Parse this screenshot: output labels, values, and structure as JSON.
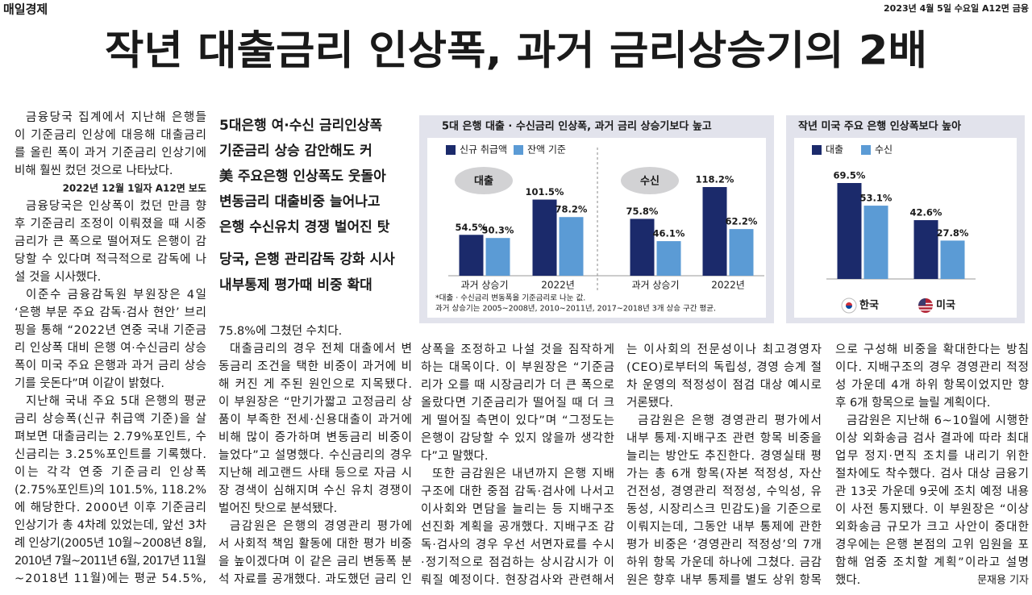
{
  "header": {
    "publication": "매일경제",
    "dateline": "2023년 4월 5일 수요일 A12면 금융"
  },
  "headline": "작년 대출금리 인상폭, 과거 금리상승기의 2배",
  "subheads": [
    [
      "5대은행 여·수신 금리인상폭",
      "기준금리 상승 감안해도 커",
      "美 주요은행 인상폭도 웃돌아",
      "변동금리 대출비중 늘어나고",
      "은행 수신유치 경쟁 벌어진 탓"
    ],
    [
      "당국, 은행 관리감독 강화 시사",
      "내부통제 평가때 비중 확대"
    ]
  ],
  "article": {
    "reference": "2022년 12월 1일자 A12면 보도",
    "byline": "문재용 기자",
    "columns": [
      [
        [
          "금융당국 집계에서 지난해 은행들",
          "이 기준금리 인상에 대응해 대출금리",
          "를 올린 폭이 과거 기준금리 인상기에",
          "비해 훨씬 컸던 것으로 나타났다."
        ],
        [
          "금융당국은 인상폭이 컸던 만큼 향",
          "후 기준금리 조정이 이뤄졌을 때 시중",
          "금리가 큰 폭으로 떨어져도 은행이 감",
          "당할 수 있다며 적극적으로 감독에 나",
          "설 것을 시사했다."
        ],
        [
          "이준수 금융감독원 부원장은 4일",
          "‘은행 부문 주요 감독·검사 현안’ 브리",
          "핑을 통해 “2022년 연중 국내 기준금",
          "리 인상폭 대비 은행 여·수신금리 상승",
          "폭이 미국 주요 은행과 과거 금리 상승",
          "기를 웃돈다”며 이같이 밝혔다."
        ],
        [
          "지난해 국내 주요 5대 은행의 평균",
          "금리 상승폭(신규 취급액 기준)을 살",
          "펴보면 대출금리는 2.79%포인트, 수",
          "신금리는 3.25%포인트를 기록했다.",
          "이는 각각 연중 기준금리 인상폭",
          "(2.75%포인트)의 101.5%, 118.2%",
          "에 해당한다. 2000년 이후 기준금리",
          "인상기가 총 4차례 있었는데, 앞선 3차",
          "례 인상기(2005년 10월~2008년 8월,",
          "2010년 7월~2011년 6월, 2017년 11월",
          "~2018년 11월)에는 평균 54.5%,"
        ]
      ],
      [
        [
          "75.8%에 그쳤던 수치다."
        ],
        [
          "대출금리의 경우 전체 대출에서 변",
          "동금리 조건을 택한 비중이 과거에 비",
          "해 커진 게 주된 원인으로 지목됐다.",
          "이 부원장은 “만기가짧고 고정금리 상",
          "품이 부족한 전세·신용대출이 과거에",
          "비해 많이 증가하며 변동금리 비중이",
          "늘었다”고 설명했다. 수신금리의 경우",
          "지난해 레고랜드 사태 등으로 자금 시",
          "장 경색이 심해지며 수신 유치 경쟁이",
          "벌어진 탓으로 분석됐다."
        ],
        [
          "금감원은 은행의 경영관리 평가에",
          "서 사회적 책임 활동에 대한 평가 비중",
          "을 높이겠다며 이 같은 금리 변동폭 분",
          "석 자료를 공개했다. 과도했던 금리 인"
        ]
      ],
      [
        [
          "상폭을 조정하고 나설 것을 짐작하게",
          "하는 대목이다. 이 부원장은 “기준금",
          "리가 오를 때 시장금리가 더 큰 폭으로",
          "올랐다면 기준금리가 떨어질 때 더 크",
          "게 떨어질 측면이 있다”며 “그정도는",
          "은행이 감당할 수 있지 않을까 생각한",
          "다”고 말했다."
        ],
        [
          "또한 금감원은 내년까지 은행 지배",
          "구조에 대한 중점 감독·검사에 나서고",
          "이사회와 면담을 늘리는 등 지배구조",
          "선진화 계획을 공개했다. 지배구조 감",
          "독·검사의 경우 우선 서면자료를 수시",
          "·정기적으로 점검하는 상시감시가 이",
          "뤄질 예정이다. 현장검사와 관련해서"
        ]
      ],
      [
        [
          "는 이사회의 전문성이나 최고경영자",
          "(CEO)로부터의 독립성, 경영 승계 절",
          "차 운영의 적정성이 점검 대상 예시로",
          "거론됐다."
        ],
        [
          "금감원은 은행 경영관리 평가에서",
          "내부 통제·지배구조 관련 항목 비중을",
          "늘리는 방안도 추진한다. 경영실태 평",
          "가는 총 6개 항목(자본 적정성, 자산",
          "건전성, 경영관리 적정성, 수익성, 유",
          "동성, 시장리스크 민감도)을 기준으로",
          "이뤄지는데, 그동안 내부 통제에 관한",
          "평가 비중은 ‘경영관리 적정성’의 7개",
          "하위 항목 가운데 하나에 그쳤다. 금감",
          "원은 향후 내부 통제를 별도 상위 항목"
        ]
      ],
      [
        [
          "으로 구성해 비중을 확대한다는 방침",
          "이다. 지배구조의 경우 경영관리 적정",
          "성 가운데 4개 하위 항목이었지만 향",
          "후 6개 항목으로 늘릴 계획이다."
        ],
        [
          "금감원은 지난해 6~10월에 시행한",
          "이상 외화송금 검사 결과에 따라 최대",
          "업무 정지·면직 조치를 내리기 위한",
          "절차에도 착수했다. 검사 대상 금융기",
          "관 13곳 가운데 9곳에 조치 예정 내용",
          "이 사전 통지됐다. 이 부원장은 “이상",
          "외화송금 규모가 크고 사안이 중대한",
          "경우에는 은행 본점의 고위 임원을 포",
          "함해 엄중 조치할 계획”이라고 설명",
          "했다."
        ]
      ]
    ]
  },
  "chart_data": [
    {
      "type": "bar",
      "title": "5대 은행 대출 · 수신금리 인상폭, 과거 금리 상승기보다 높고",
      "groups": [
        "대출",
        "수신"
      ],
      "categories": [
        "과거 상승기",
        "2022년",
        "과거 상승기",
        "2022년"
      ],
      "series": [
        {
          "name": "신규 취급액",
          "color": "#1b2a6b",
          "values": [
            54.5,
            101.5,
            75.8,
            118.2
          ],
          "value_labels": [
            "54.5%",
            "101.5%",
            "75.8%",
            "118.2%"
          ]
        },
        {
          "name": "잔액 기준",
          "color": "#5b9bd5",
          "values": [
            50.3,
            78.2,
            46.1,
            62.2
          ],
          "value_labels": [
            "50.3%",
            "78.2%",
            "46.1%",
            "62.2%"
          ]
        }
      ],
      "notes": [
        "*대출 · 수신금리 변동폭을 기준금리로 나눈 값.",
        "과거 상승기는 2005~2008년, 2010~2011년, 2017~2018년 3개 상승 구간 평균."
      ]
    },
    {
      "type": "bar",
      "title": "작년 미국 주요 은행 인상폭보다 높아",
      "categories": [
        "한국",
        "미국"
      ],
      "series": [
        {
          "name": "대출",
          "color": "#1b2a6b",
          "values": [
            69.5,
            42.6
          ],
          "value_labels": [
            "69.5%",
            "42.6%"
          ]
        },
        {
          "name": "수신",
          "color": "#5b9bd5",
          "values": [
            53.1,
            27.8
          ],
          "value_labels": [
            "53.1%",
            "27.8%"
          ]
        }
      ]
    }
  ]
}
